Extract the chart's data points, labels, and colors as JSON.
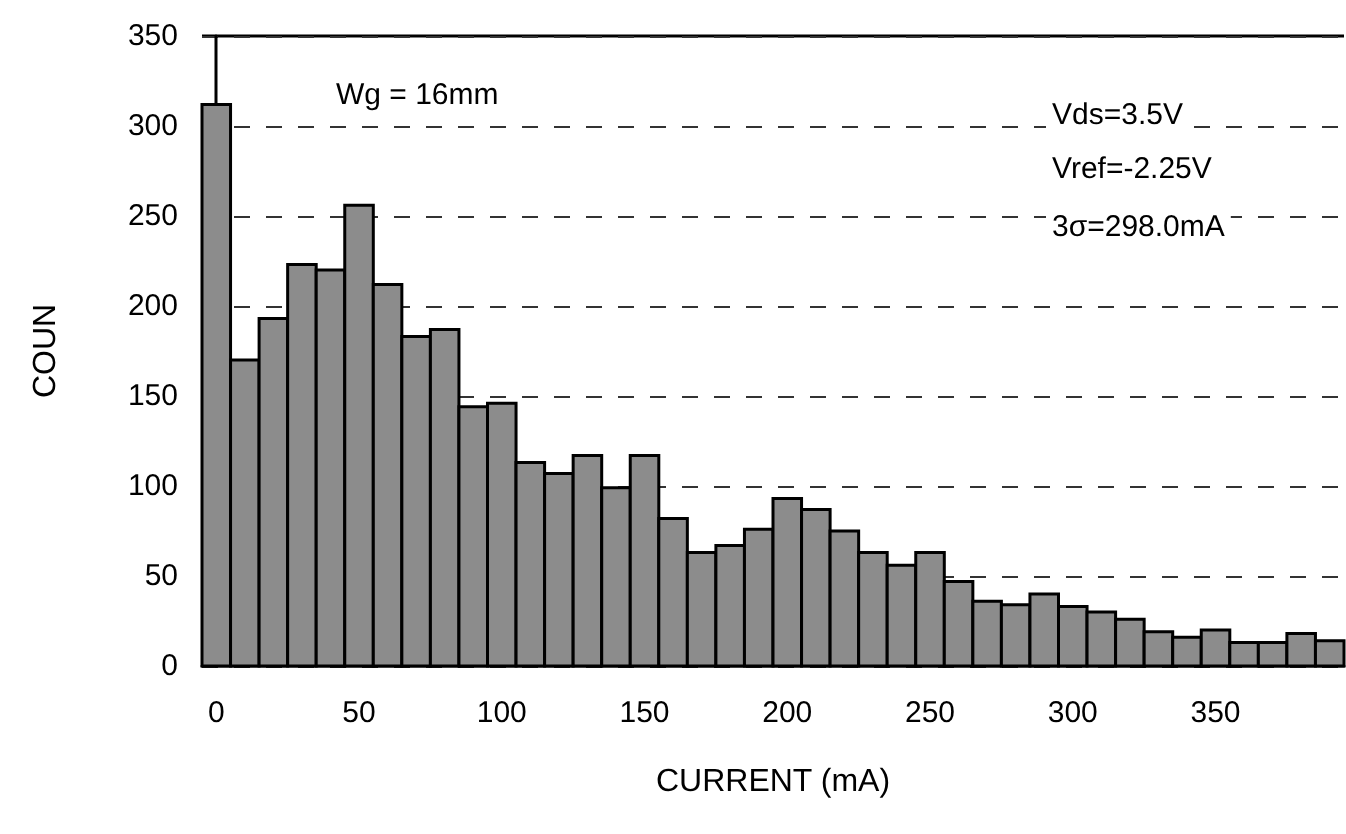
{
  "chart_data": {
    "type": "histogram",
    "xlabel": "CURRENT (mA)",
    "ylabel": "COUN",
    "bins": [
      -5,
      5,
      15,
      25,
      35,
      45,
      55,
      65,
      75,
      85,
      95,
      105,
      115,
      125,
      135,
      145,
      155,
      165,
      175,
      185,
      195,
      205,
      215,
      225,
      235,
      245,
      255,
      265,
      275,
      285,
      295,
      305,
      315,
      325,
      335,
      345,
      355,
      365,
      375,
      385,
      395
    ],
    "values": [
      312,
      170,
      193,
      223,
      220,
      256,
      212,
      183,
      187,
      144,
      146,
      113,
      107,
      117,
      99,
      117,
      82,
      63,
      67,
      76,
      93,
      87,
      75,
      63,
      56,
      63,
      47,
      36,
      34,
      40,
      33,
      30,
      26,
      19,
      16,
      20,
      13,
      13,
      18,
      14
    ],
    "color": "#8c8c8c",
    "xlim": [
      -5,
      395
    ],
    "xticks": [
      0,
      50,
      100,
      150,
      200,
      250,
      300,
      350
    ],
    "ylim": [
      0,
      350
    ],
    "yticks": [
      0,
      50,
      100,
      150,
      200,
      250,
      300,
      350
    ],
    "grid": "y",
    "annotations": [
      "Wg = 16mm",
      "Vds=3.5V",
      "Vref=-2.25V",
      "3σ=298.0mA"
    ]
  }
}
